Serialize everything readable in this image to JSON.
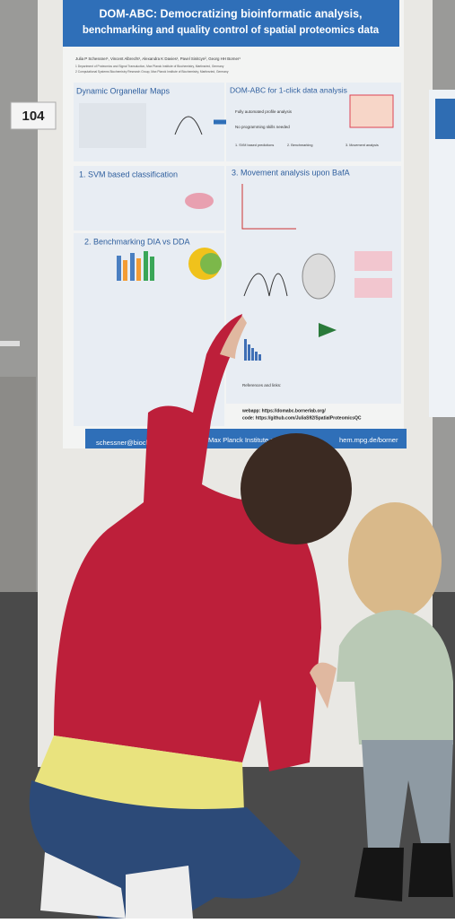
{
  "board_number": "104",
  "poster": {
    "title_lines": [
      "DOM-ABC: Democratizing bioinformatic analysis,",
      "benchmarking and quality control of spatial proteomics data"
    ],
    "authors": "Julia P Schessner¹, Vincent Albrecht¹, Alexandra K Davies¹, Pavel Sinitcyn², Georg HH Borner¹",
    "affiliations": [
      "1 Department of Proteomics and Signal Transduction, Max Planck Institute of Biochemistry, Martinsried, Germany",
      "2 Computational Systems Biochemistry Research Group, Max Planck Institute of Biochemistry, Martinsried, Germany"
    ],
    "sections": [
      "Dynamic Organellar Maps",
      "DOM-ABC for 1-click data analysis",
      "1. SVM based classification",
      "3. Movement analysis upon BafA",
      "2. Benchmarking DIA vs DDA"
    ],
    "flow": [
      "Fully automated profile analysis",
      "No programming skills needed",
      "1. SVM based predictions",
      "2. Benchmarking",
      "3. Movement analysis"
    ],
    "references_heading": "References and links:",
    "webapp": "webapp: https://domabc.bornerlab.org/",
    "code": "code: https://github.com/JuliaS92/SpatialProteomicsQC",
    "footer": {
      "email": "schessner@bioch",
      "institute": "Max Planck Institute of Bioch",
      "url": "hem.mpg.de/borner"
    }
  }
}
